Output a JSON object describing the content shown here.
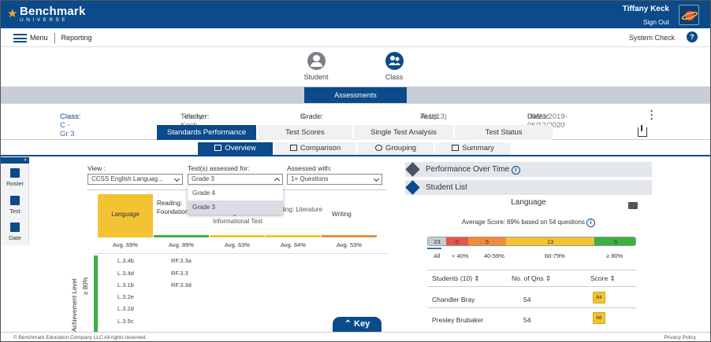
{
  "header": {
    "brand": "Benchmark",
    "brand_sub": "UNIVERSE",
    "user_name": "Tiffany Keck",
    "sign_out": "Sign Out"
  },
  "nav": {
    "menu_label": "Menu",
    "section": "Reporting",
    "system_check": "System Check",
    "help": "?"
  },
  "modes": [
    {
      "label": "Student",
      "icon": "person-icon",
      "color": "#7b7f85"
    },
    {
      "label": "Class",
      "icon": "group-icon",
      "color": "#0b4a8b",
      "active": true
    }
  ],
  "assessments_label": "Assessments",
  "info": {
    "class_label": "Class:",
    "class_value": "Class C - Gr 3",
    "teacher_label": "Teacher:",
    "teacher_value": "Tiffany Keck",
    "grade_label": "Grade:",
    "grade_value": "3",
    "tests_label": "Tests:",
    "tests_value": "ALL(13)",
    "dates_label": "Dates:",
    "dates_value": "08/21/2019-06/12/2020"
  },
  "tabs": [
    "Standards Performance",
    "Test Scores",
    "Single Test Analysis",
    "Test Status"
  ],
  "subtabs": [
    "Overview",
    "Comparison",
    "Grouping",
    "Summary"
  ],
  "sidebar": {
    "collapse": "»",
    "items": [
      "Roster",
      "Test",
      "Date"
    ]
  },
  "filters": {
    "view_label": "View :",
    "view_value": "CCSS English Languag...",
    "tests_label": "Test(s) assessed for:",
    "tests_value": "Grade 3",
    "with_label": "Assessed with:",
    "with_value": "1+ Questions",
    "dropdown_options": [
      "Grade 4",
      "Grade 3"
    ]
  },
  "categories": [
    {
      "name": "Language",
      "avg": "Avg. 69%",
      "color": "#f3c334"
    },
    {
      "name": "Reading: Foundational Skills",
      "avg": "Avg. 89%",
      "color": "#3cb043"
    },
    {
      "name": "Reading: Informational Text",
      "avg": "Avg. 63%",
      "color": "#f3c334"
    },
    {
      "name": "Reading: Literature",
      "avg": "Avg. 64%",
      "color": "#f3c334"
    },
    {
      "name": "Writing",
      "avg": "Avg. 53%",
      "color": "#f08c3a"
    }
  ],
  "standards": {
    "col1": [
      "L.3.4b",
      "L.3.4d",
      "L.3.1b",
      "L.3.2e",
      "L.3.2d",
      "L.3.5c"
    ],
    "col2": [
      "RF.3.3a",
      "RF.3.3",
      "RF.3.3d"
    ]
  },
  "axis": {
    "level": "≥ 80%",
    "title": "Achievement Level"
  },
  "key_label": "Key",
  "right": {
    "perf_over_time": "Performance Over Time",
    "student_list": "Student List",
    "subject": "Language",
    "avg_score": "Average Score: 69% based on 54 questions",
    "bands": [
      {
        "count": "23",
        "label": "All",
        "color": "#c5cdd8"
      },
      {
        "count": "0",
        "label": "< 40%",
        "color": "#e8534a"
      },
      {
        "count": "5",
        "label": "40-59%",
        "color": "#f08c3a"
      },
      {
        "count": "13",
        "label": "60-79%",
        "color": "#f3c334"
      },
      {
        "count": "5",
        "label": "≥ 80%",
        "color": "#3cb043"
      }
    ],
    "columns": [
      "Students (10)",
      "No. of Qns",
      "Score"
    ],
    "rows": [
      {
        "name": "Chandler Bray",
        "qns": "54",
        "score": "64"
      },
      {
        "name": "Presley Brubaker",
        "qns": "54",
        "score": "66"
      }
    ]
  },
  "footer": {
    "copyright": "© Benchmark Education Company LLC All rights reserved.",
    "privacy": "Privacy Policy"
  }
}
